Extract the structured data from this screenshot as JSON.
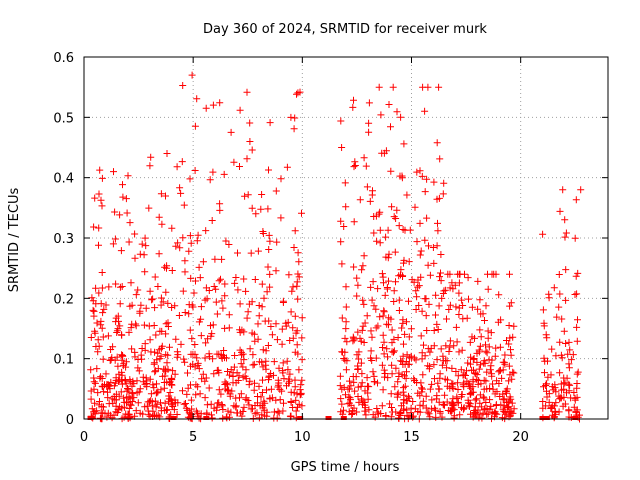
{
  "chart_data": {
    "type": "scatter",
    "title": "Day 360 of 2024, SRMTID for receiver murk",
    "xlabel": "GPS time / hours",
    "ylabel": "SRMTID / TECUs",
    "xlim": [
      0,
      24
    ],
    "ylim": [
      0,
      0.6
    ],
    "xticks": [
      0,
      5,
      10,
      15,
      20
    ],
    "yticks": [
      0,
      0.1,
      0.2,
      0.3,
      0.4,
      0.5,
      0.6
    ],
    "xtick_labels": [
      "0",
      "5",
      "10",
      "15",
      "20"
    ],
    "ytick_labels": [
      "0",
      "0.1",
      "0.2",
      "0.3",
      "0.4",
      "0.5",
      "0.6"
    ],
    "grid": true,
    "marker": "plus",
    "color": "#ff0000",
    "gap_start_hours": [
      0.3,
      4.1,
      5.6,
      9.9,
      11.2,
      11.9,
      21.0,
      21.2,
      22.5
    ],
    "clusters": [
      {
        "x_range": [
          0.3,
          4.3
        ],
        "y_mean": 0.11,
        "y_max": 0.44,
        "count": 380
      },
      {
        "x_range": [
          4.3,
          10.0
        ],
        "y_mean": 0.14,
        "y_max": 0.57,
        "count": 420
      },
      {
        "x_range": [
          11.7,
          16.5
        ],
        "y_mean": 0.15,
        "y_max": 0.55,
        "count": 420
      },
      {
        "x_range": [
          16.5,
          19.7
        ],
        "y_mean": 0.08,
        "y_max": 0.24,
        "count": 280
      },
      {
        "x_range": [
          21.0,
          22.7
        ],
        "y_mean": 0.1,
        "y_max": 0.38,
        "count": 120
      }
    ],
    "highlights": [
      {
        "x": 4.95,
        "y": 0.57
      },
      {
        "x": 15.75,
        "y": 0.55
      },
      {
        "x": 15.6,
        "y": 0.51
      },
      {
        "x": 14.5,
        "y": 0.5
      },
      {
        "x": 22.75,
        "y": 0.38
      },
      {
        "x": 7.6,
        "y": 0.46
      },
      {
        "x": 3.8,
        "y": 0.44
      },
      {
        "x": 11.8,
        "y": 0.45
      }
    ]
  }
}
